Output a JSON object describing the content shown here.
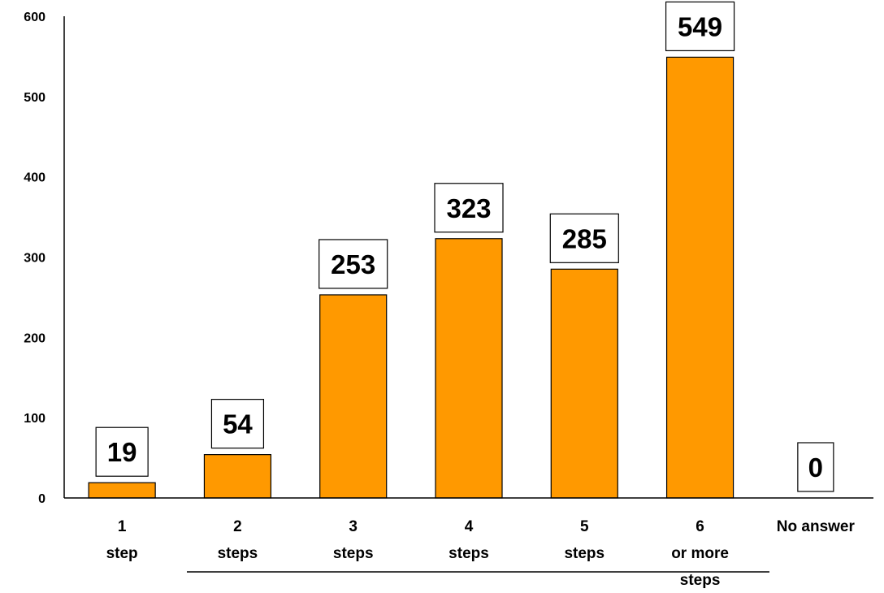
{
  "chart_data": {
    "type": "bar",
    "categories": [
      [
        "1",
        "step"
      ],
      [
        "2",
        "steps"
      ],
      [
        "3",
        "steps"
      ],
      [
        "4",
        "steps"
      ],
      [
        "5",
        "steps"
      ],
      [
        "6",
        "or more",
        "steps"
      ],
      [
        "No answer"
      ]
    ],
    "values": [
      19,
      54,
      253,
      323,
      285,
      549,
      0
    ],
    "value_labels": [
      "19",
      "54",
      "253",
      "323",
      "285",
      "549",
      "0"
    ],
    "yticks": [
      "0",
      "100",
      "200",
      "300",
      "400",
      "500",
      "600"
    ],
    "ylim": [
      0,
      600
    ],
    "bar_color": "#FF9900",
    "bar_edge_color": "#000000",
    "grid": false,
    "legend": "none"
  }
}
